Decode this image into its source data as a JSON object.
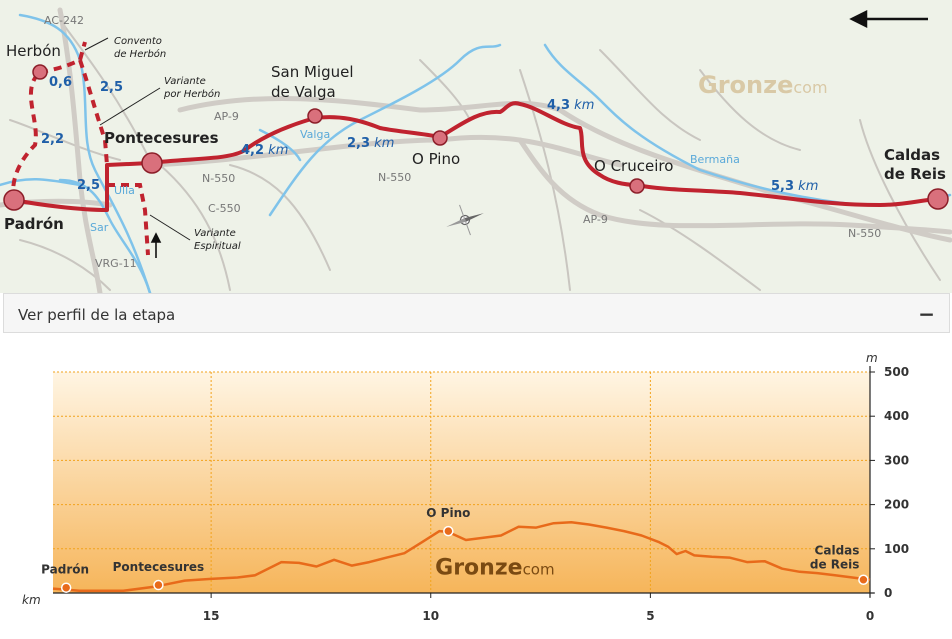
{
  "map": {
    "towns": {
      "herbon": "Herbón",
      "pontecesures": "Pontecesures",
      "san_miguel_1": "San Miguel",
      "san_miguel_2": "de Valga",
      "o_pino": "O Pino",
      "o_cruceiro": "O Cruceiro",
      "caldas_1": "Caldas",
      "caldas_2": "de Reis",
      "padron": "Padrón"
    },
    "notes": {
      "convento_1": "Convento",
      "convento_2": "de Herbón",
      "variante_herbon_1": "Variante",
      "variante_herbon_2": "por Herbón",
      "variante_espiritual_1": "Variante",
      "variante_espiritual_2": "Espiritual"
    },
    "roads": {
      "ac242": "AC-242",
      "ap9_top": "AP-9",
      "n550_a": "N-550",
      "n550_b": "N-550",
      "c550": "C-550",
      "ap9_bottom": "AP-9",
      "n550_c": "N-550",
      "vrg": "VRG-11"
    },
    "rivers": {
      "valga": "Valga",
      "bermana": "Bermaña",
      "ulla": "Ulla",
      "sar": "Sar"
    },
    "distances": {
      "d06": "0,6",
      "d25a": "2,5",
      "d22": "2,2",
      "d25b": "2,5",
      "d42_num": "4,2",
      "d23_num": "2,3",
      "d43_num": "4,3",
      "d53_num": "5,3",
      "unit": "km"
    },
    "brand": {
      "main": "Gronze",
      "suffix": "com"
    },
    "direction_arrow": "arrow-left-icon",
    "compass": "compass-icon"
  },
  "panel": {
    "title": "Ver perfil de la etapa",
    "collapse_symbol": "−"
  },
  "chart_data": {
    "type": "area",
    "xlabel": "km",
    "ylabel": "m",
    "x_ticks": [
      "15",
      "10",
      "5",
      "0"
    ],
    "x_tick_values": [
      15,
      10,
      5,
      0
    ],
    "y_ticks": [
      "0",
      "100",
      "200",
      "300",
      "400",
      "500"
    ],
    "y_tick_values": [
      0,
      100,
      200,
      300,
      400,
      500
    ],
    "xlim": [
      18.6,
      0
    ],
    "ylim": [
      0,
      500
    ],
    "grid": true,
    "series": [
      {
        "x": [
          18.6,
          18.0,
          17.0,
          16.3,
          16.0,
          15.6,
          15.0,
          14.4,
          14.0,
          13.4,
          13.0,
          12.6,
          12.2,
          11.8,
          11.4,
          11.0,
          10.6,
          10.2,
          9.8,
          9.6,
          9.2,
          8.8,
          8.4,
          8.0,
          7.6,
          7.2,
          6.8,
          6.4,
          6.0,
          5.6,
          5.2,
          4.8,
          4.6,
          4.4,
          4.2,
          4.0,
          3.6,
          3.2,
          2.8,
          2.4,
          2.0,
          1.6,
          1.2,
          0.8,
          0.4,
          0.0
        ],
        "y": [
          10,
          5,
          5,
          14,
          20,
          28,
          32,
          35,
          40,
          70,
          68,
          60,
          75,
          62,
          70,
          80,
          90,
          115,
          140,
          138,
          120,
          125,
          130,
          150,
          148,
          158,
          160,
          155,
          148,
          140,
          130,
          115,
          105,
          88,
          95,
          85,
          82,
          80,
          70,
          72,
          55,
          48,
          45,
          40,
          35,
          30
        ]
      }
    ],
    "markers": [
      {
        "label": "Padrón",
        "x": 18.3,
        "y": 12
      },
      {
        "label": "Pontecesures",
        "x": 16.2,
        "y": 18
      },
      {
        "label": "O Pino",
        "x": 9.6,
        "y": 140
      },
      {
        "label": "Caldas",
        "label2": "de Reis",
        "x": 0.15,
        "y": 30
      }
    ],
    "watermark_main": "Gronze",
    "watermark_suffix": "com",
    "colors": {
      "line": "#e86a1a",
      "fill_top": "#fff3dc",
      "fill_bottom": "#f6b85a",
      "grid": "#f2a21b"
    }
  }
}
